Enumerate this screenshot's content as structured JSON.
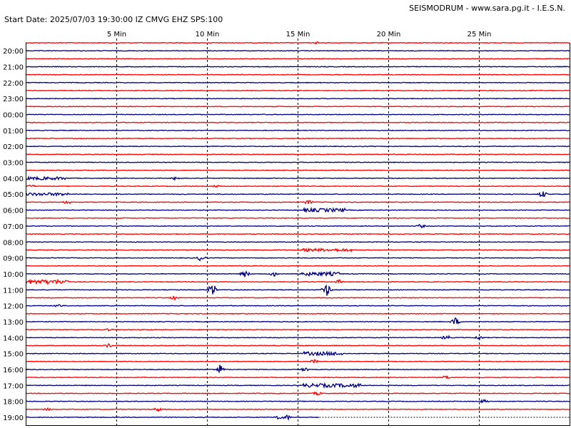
{
  "header": {
    "title_right": "SEISMODRUM - www.sara.pg.it - I.E.S.N.",
    "title_left": "Start Date: 2025/07/03 19:30:00 IZ CMVG EHZ SPS:100"
  },
  "colors": {
    "trace_a": "#ff0000",
    "trace_b": "#000080",
    "grid": "#000000",
    "background": "#ffffff"
  },
  "chart_data": {
    "type": "line",
    "minute_ticks": [
      "5 Min",
      "10 Min",
      "15 Min",
      "20 Min",
      "25 Min"
    ],
    "minute_tick_values": [
      5,
      10,
      15,
      20,
      25
    ],
    "minutes_per_line": 30,
    "row_labels": [
      "20:00",
      "21:00",
      "22:00",
      "23:00",
      "00:00",
      "01:00",
      "02:00",
      "03:00",
      "04:00",
      "05:00",
      "06:00",
      "07:00",
      "08:00",
      "09:00",
      "10:00",
      "11:00",
      "12:00",
      "13:00",
      "14:00",
      "15:00",
      "16:00",
      "17:00",
      "18:00",
      "19:00"
    ],
    "row_label_every": 2,
    "trace_count": 48,
    "color_pattern": [
      "trace_a",
      "trace_b"
    ],
    "events": [
      {
        "trace": 0,
        "minute": 16.1,
        "amp": 2
      },
      {
        "trace": 17,
        "minute": 0.9,
        "amp": 2.5
      },
      {
        "trace": 17,
        "minute": 8.3,
        "amp": 3
      },
      {
        "trace": 18,
        "minute": 0.3,
        "amp": 2.5
      },
      {
        "trace": 18,
        "minute": 10.5,
        "amp": 2
      },
      {
        "trace": 19,
        "minute": 28.5,
        "amp": 5
      },
      {
        "trace": 20,
        "minute": 2.3,
        "amp": 3
      },
      {
        "trace": 20,
        "minute": 15.6,
        "amp": 3.5
      },
      {
        "trace": 23,
        "minute": 21.8,
        "amp": 3
      },
      {
        "trace": 26,
        "minute": 15.6,
        "amp": 3
      },
      {
        "trace": 27,
        "minute": 9.7,
        "amp": 5
      },
      {
        "trace": 29,
        "minute": 12.1,
        "amp": 5
      },
      {
        "trace": 29,
        "minute": 13.7,
        "amp": 4
      },
      {
        "trace": 29,
        "minute": 15.6,
        "amp": 3
      },
      {
        "trace": 30,
        "minute": 0.7,
        "amp": 4
      },
      {
        "trace": 30,
        "minute": 17.3,
        "amp": 3
      },
      {
        "trace": 31,
        "minute": 10.3,
        "amp": 9
      },
      {
        "trace": 31,
        "minute": 16.6,
        "amp": 9
      },
      {
        "trace": 32,
        "minute": 8.2,
        "amp": 3
      },
      {
        "trace": 33,
        "minute": 1.8,
        "amp": 3
      },
      {
        "trace": 35,
        "minute": 23.7,
        "amp": 6
      },
      {
        "trace": 36,
        "minute": 4.6,
        "amp": 2
      },
      {
        "trace": 37,
        "minute": 23.2,
        "amp": 4
      },
      {
        "trace": 37,
        "minute": 25,
        "amp": 3
      },
      {
        "trace": 38,
        "minute": 4.6,
        "amp": 3
      },
      {
        "trace": 40,
        "minute": 15.9,
        "amp": 3
      },
      {
        "trace": 41,
        "minute": 10.7,
        "amp": 7
      },
      {
        "trace": 41,
        "minute": 15.4,
        "amp": 3
      },
      {
        "trace": 42,
        "minute": 23.2,
        "amp": 3
      },
      {
        "trace": 44,
        "minute": 16.1,
        "amp": 3
      },
      {
        "trace": 45,
        "minute": 25.3,
        "amp": 3
      },
      {
        "trace": 46,
        "minute": 7.3,
        "amp": 3
      },
      {
        "trace": 46,
        "minute": 1.2,
        "amp": 2
      },
      {
        "trace": 47,
        "minute": 14.4,
        "amp": 4
      },
      {
        "trace": 47,
        "minute": 13.9,
        "amp": 3
      }
    ],
    "noisy_segments": [
      {
        "trace": 17,
        "from": 0,
        "to": 2.2,
        "amp": 2
      },
      {
        "trace": 19,
        "from": 0,
        "to": 2.4,
        "amp": 2
      },
      {
        "trace": 21,
        "from": 15.3,
        "to": 17.6,
        "amp": 2.5
      },
      {
        "trace": 26,
        "from": 15.2,
        "to": 18,
        "amp": 2
      },
      {
        "trace": 29,
        "from": 15.2,
        "to": 17.3,
        "amp": 2.5
      },
      {
        "trace": 30,
        "from": 0,
        "to": 2.4,
        "amp": 3
      },
      {
        "trace": 39,
        "from": 15.3,
        "to": 17.5,
        "amp": 2.5
      },
      {
        "trace": 43,
        "from": 15.3,
        "to": 18.5,
        "amp": 2.5
      }
    ],
    "last_trace_end_minute": 16.2
  }
}
